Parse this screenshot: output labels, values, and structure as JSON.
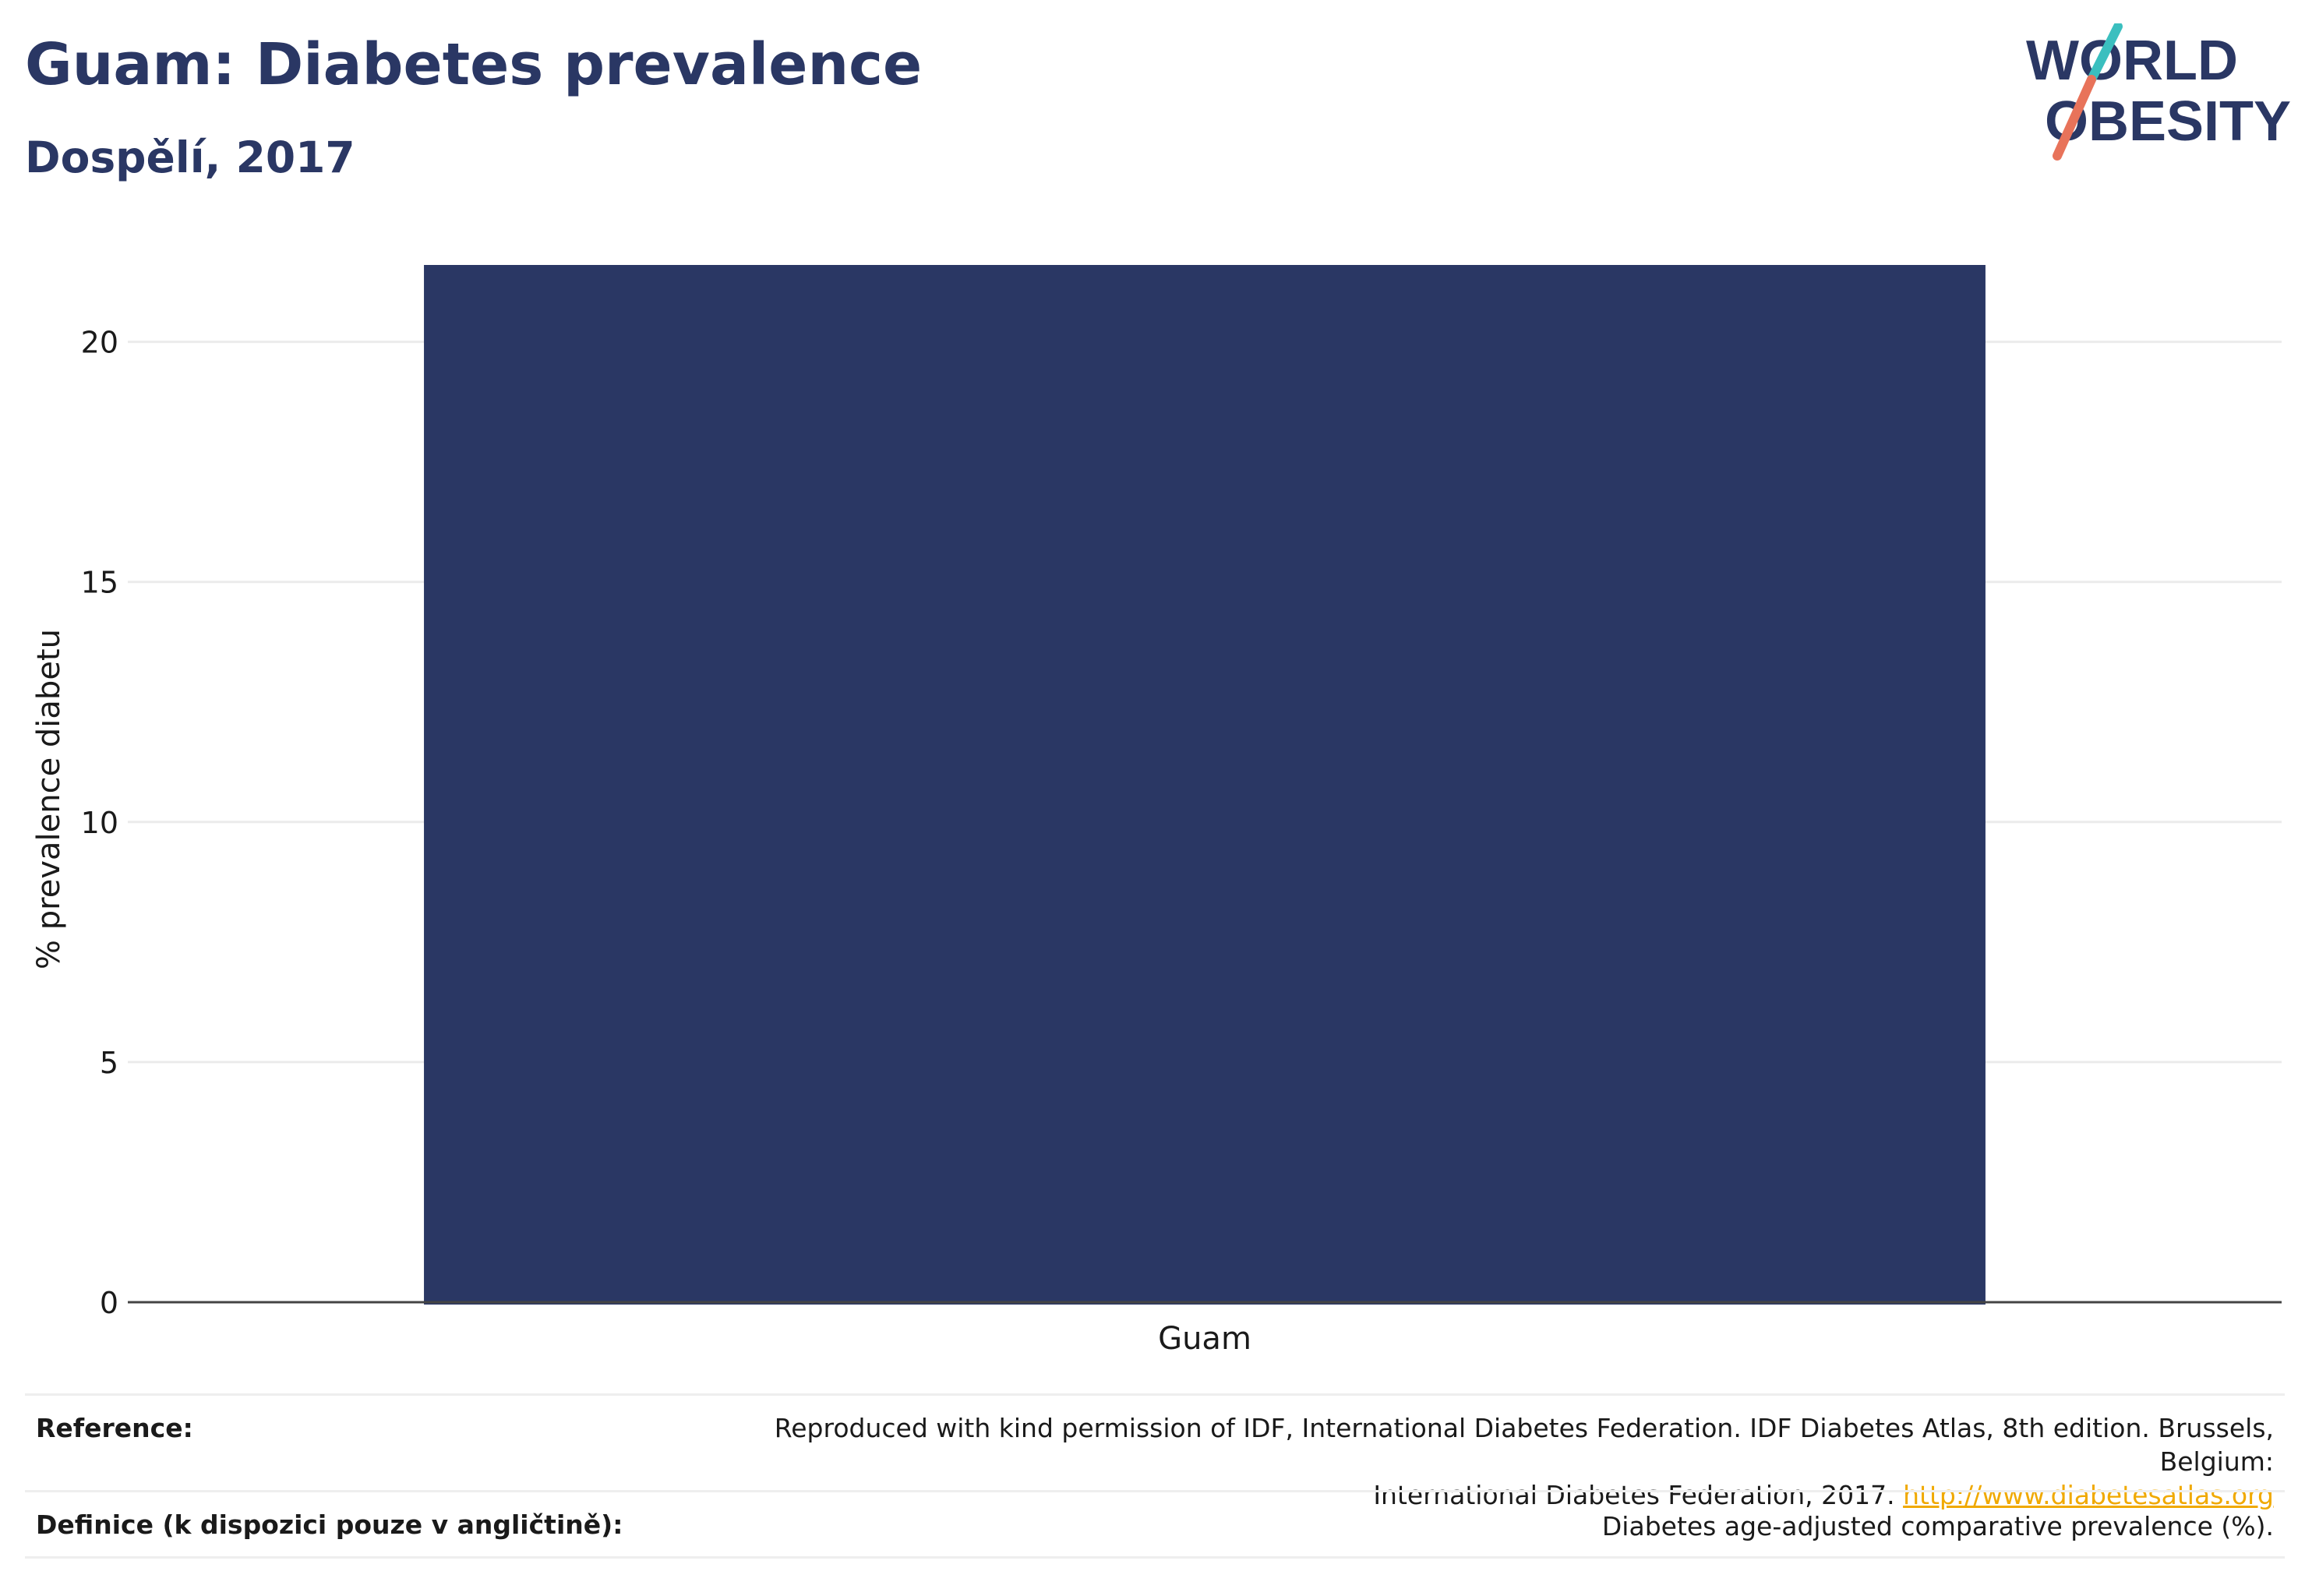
{
  "title": "Guam: Diabetes prevalence",
  "subtitle": "Dospělí, 2017",
  "logo": {
    "line1": "WORLD",
    "line2": "OBESITY",
    "text_color": "#2a3764",
    "slash_top_color": "#3bbfbf",
    "slash_bottom_color": "#e8735a"
  },
  "chart_data": {
    "type": "bar",
    "categories": [
      "Guam"
    ],
    "values": [
      21.6
    ],
    "ylabel": "% prevalence diabetu",
    "xlabel": "",
    "ylim": [
      0,
      21.6
    ],
    "yticks": [
      0,
      5,
      10,
      15,
      20
    ],
    "grid": true,
    "bar_color": "#2a3764"
  },
  "footer": {
    "reference_label": "Reference:",
    "reference_text_line1": "Reproduced with kind permission of IDF, International Diabetes Federation. IDF Diabetes Atlas, 8th edition. Brussels, Belgium:",
    "reference_text_line2": "International Diabetes Federation, 2017.",
    "reference_link": "http://www.diabetesatlas.org",
    "definition_label": "Definice (k dispozici pouze v angličtině):",
    "definition_text": "Diabetes age-adjusted comparative prevalence (%)."
  }
}
